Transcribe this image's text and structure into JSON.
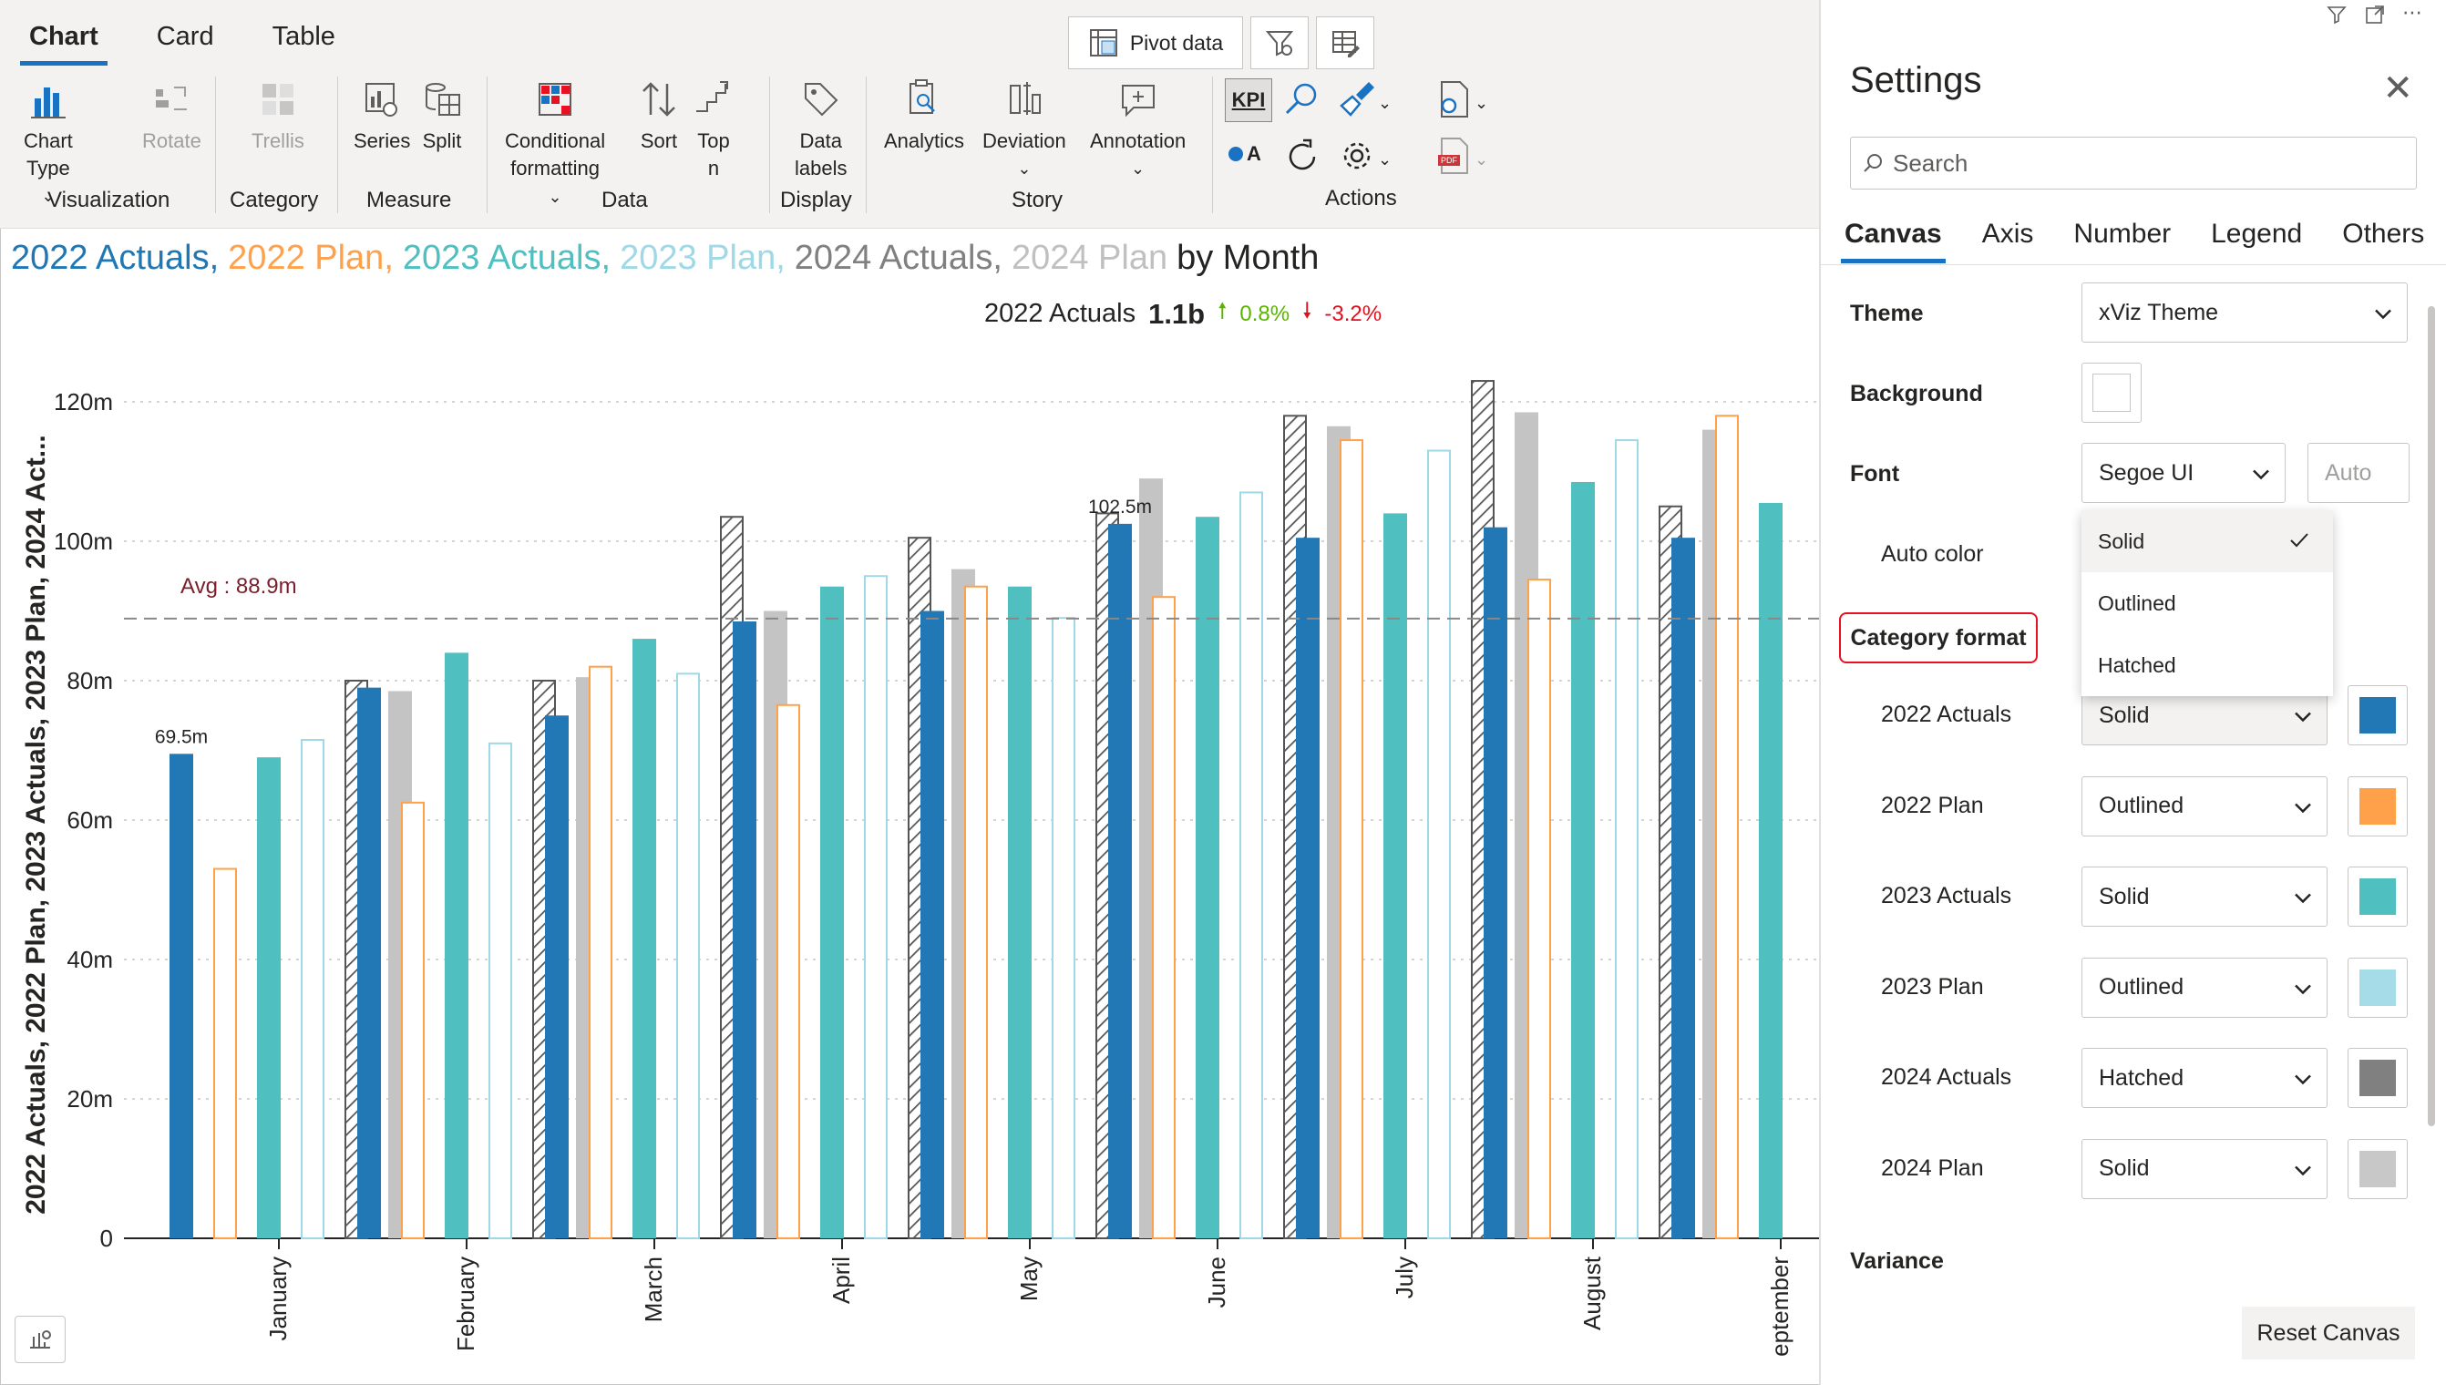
{
  "ribbon": {
    "tabs": [
      "Chart",
      "Card",
      "Table"
    ],
    "pivot_label": "Pivot data",
    "visualization": {
      "chart_type": "Chart Type",
      "rotate": "Rotate",
      "group": "Visualization"
    },
    "category": {
      "trellis": "Trellis",
      "group": "Category"
    },
    "measure": {
      "series": "Series",
      "split": "Split",
      "group": "Measure"
    },
    "data": {
      "conditional_1": "Conditional",
      "conditional_2": "formatting",
      "sort": "Sort",
      "top_n": "Top n",
      "group": "Data"
    },
    "display": {
      "labels_1": "Data",
      "labels_2": "labels",
      "group": "Display"
    },
    "story": {
      "analytics": "Analytics",
      "deviation": "Deviation",
      "annotation": "Annotation",
      "group": "Story"
    },
    "actions": {
      "kpi": "KPI",
      "a_label": "A",
      "group": "Actions"
    }
  },
  "chart": {
    "title_parts": [
      {
        "text": "2022 Actuals,",
        "color": "#1f77b4"
      },
      {
        "text": "2022 Plan,",
        "color": "#ffa04a"
      },
      {
        "text": "2023 Actuals,",
        "color": "#4fbfc0"
      },
      {
        "text": "2023 Plan,",
        "color": "#9fd8e6"
      },
      {
        "text": "2024 Actuals,",
        "color": "#808080"
      },
      {
        "text": "2024 Plan",
        "color": "#c0c0c0"
      },
      {
        "text": "by Month",
        "color": "#252423"
      }
    ],
    "kpi": {
      "label": "2022 Actuals",
      "value": "1.1b",
      "up_pct": "0.8%",
      "down_pct": "-3.2%"
    },
    "ylabel": "2022 Actuals, 2022 Plan, 2023 Actuals, 2023 Plan, 2024 Act...",
    "avg_label": "Avg : 88.9m"
  },
  "chart_data": {
    "type": "bar",
    "categories": [
      "January",
      "February",
      "March",
      "April",
      "May",
      "June",
      "July",
      "August",
      "September"
    ],
    "series": [
      {
        "name": "2022 Actuals",
        "style": "solid",
        "color": "#2277b5",
        "values": [
          69.5,
          79,
          75,
          88.5,
          90,
          102.5,
          100.5,
          102,
          100.5
        ]
      },
      {
        "name": "2022 Plan",
        "style": "outlined",
        "color": "#ffa04a",
        "values": [
          53,
          62.5,
          82,
          76.5,
          93.5,
          92,
          114.5,
          94.5,
          118
        ]
      },
      {
        "name": "2023 Actuals",
        "style": "solid",
        "color": "#4fbfc0",
        "values": [
          69,
          84,
          86,
          93.5,
          93.5,
          103.5,
          104,
          108.5,
          105.5
        ]
      },
      {
        "name": "2023 Plan",
        "style": "outlined",
        "color": "#9fd8e6",
        "values": [
          71.5,
          71,
          81,
          95,
          89,
          107,
          113,
          114.5,
          103.5
        ]
      },
      {
        "name": "2024 Actuals",
        "style": "hatched",
        "color": "#808080",
        "values": [
          80,
          80,
          103.5,
          100.5,
          104,
          118,
          123,
          105,
          94.5
        ]
      },
      {
        "name": "2024 Plan",
        "style": "solid",
        "color": "#c4c4c4",
        "values": [
          78.5,
          80.5,
          90,
          96,
          109,
          116.5,
          118.5,
          116,
          113
        ]
      }
    ],
    "data_labels": [
      {
        "category": "January",
        "series": "2022 Actuals",
        "text": "69.5m"
      },
      {
        "category": "June",
        "series": "2022 Actuals",
        "text": "102.5m"
      }
    ],
    "average": 88.9,
    "yticks": [
      "0",
      "20m",
      "40m",
      "60m",
      "80m",
      "100m",
      "120m"
    ],
    "ytick_values": [
      0,
      20,
      40,
      60,
      80,
      100,
      120
    ],
    "ylim": [
      0,
      120
    ],
    "grid": true
  },
  "settings": {
    "title": "Settings",
    "search_placeholder": "Search",
    "tabs": [
      "Canvas",
      "Axis",
      "Number",
      "Legend",
      "Others"
    ],
    "theme_label": "Theme",
    "theme_value": "xViz Theme",
    "background_label": "Background",
    "font_label": "Font",
    "font_value": "Segoe UI",
    "font_size_placeholder": "Auto",
    "auto_color_label": "Auto color",
    "category_format_label": "Category format",
    "menu_options": [
      "Solid",
      "Outlined",
      "Hatched"
    ],
    "menu_selected": "Solid",
    "rows": [
      {
        "label": "2022 Actuals",
        "value": "Solid",
        "color": "#2277b5"
      },
      {
        "label": "2022 Plan",
        "value": "Outlined",
        "color": "#ffa04a"
      },
      {
        "label": "2023 Actuals",
        "value": "Solid",
        "color": "#4fbfc0"
      },
      {
        "label": "2023 Plan",
        "value": "Outlined",
        "color": "#a6dbe8"
      },
      {
        "label": "2024 Actuals",
        "value": "Hatched",
        "color": "#808080"
      },
      {
        "label": "2024 Plan",
        "value": "Solid",
        "color": "#c8c8c8"
      }
    ],
    "variance_label": "Variance",
    "reset_label": "Reset Canvas"
  }
}
